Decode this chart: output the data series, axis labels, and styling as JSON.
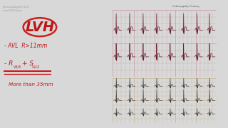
{
  "bg_color": "#d8d8d8",
  "left_panel_bg": "#f4f4f4",
  "ecg_top_bg": "#f0d8da",
  "ecg_bottom_bg": "#ede8d8",
  "ecg_top_grid_major": "#c8a0a8",
  "ecg_top_grid_minor": "#dbbfc4",
  "ecg_bottom_grid_major": "#c8b898",
  "ecg_bottom_grid_minor": "#ddd0b8",
  "ecg_top_line_color": "#6b2030",
  "ecg_bottom_line_color": "#282828",
  "handwriting_color": "#bb1818",
  "ellipse_color": "#cc2020",
  "header1": "Electrocardiogram (ECG)",
  "header2": "Learn ECG Dr Jamal",
  "lvh_text": "LVH",
  "bullet1": "- AVL  R>11mm",
  "underline_color": "#cc1010",
  "more_text": "More than 35mm",
  "right_edge_color": "#222222",
  "separator_color": "#aaaaaa",
  "top_bar_color": "#e0e0e0"
}
